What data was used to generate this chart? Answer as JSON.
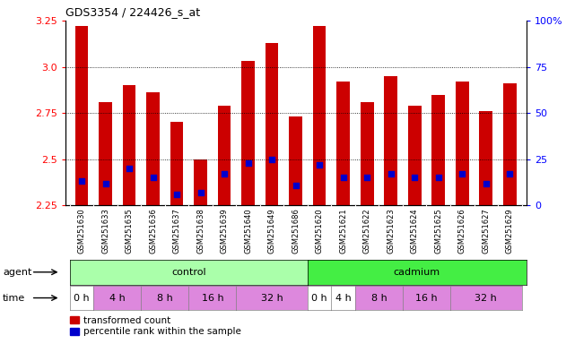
{
  "title": "GDS3354 / 224426_s_at",
  "samples": [
    "GSM251630",
    "GSM251633",
    "GSM251635",
    "GSM251636",
    "GSM251637",
    "GSM251638",
    "GSM251639",
    "GSM251640",
    "GSM251649",
    "GSM251686",
    "GSM251620",
    "GSM251621",
    "GSM251622",
    "GSM251623",
    "GSM251624",
    "GSM251625",
    "GSM251626",
    "GSM251627",
    "GSM251629"
  ],
  "bar_heights": [
    3.22,
    2.81,
    2.9,
    2.86,
    2.7,
    2.5,
    2.79,
    3.03,
    3.13,
    2.73,
    3.22,
    2.92,
    2.81,
    2.95,
    2.79,
    2.85,
    2.92,
    2.76,
    2.91
  ],
  "blue_dot_values": [
    2.38,
    2.37,
    2.45,
    2.4,
    2.31,
    2.32,
    2.42,
    2.48,
    2.5,
    2.36,
    2.47,
    2.4,
    2.4,
    2.42,
    2.4,
    2.4,
    2.42,
    2.37,
    2.42
  ],
  "bar_color": "#cc0000",
  "blue_color": "#0000cc",
  "ymin": 2.25,
  "ymax": 3.25,
  "yticks": [
    2.25,
    2.5,
    2.75,
    3.0,
    3.25
  ],
  "right_yticks": [
    0,
    25,
    50,
    75,
    100
  ],
  "control_color": "#aaffaa",
  "cadmium_color": "#44ee44",
  "time_white_color": "#ffffff",
  "time_pink_color": "#dd88dd",
  "legend_red_label": "transformed count",
  "legend_blue_label": "percentile rank within the sample",
  "bar_width": 0.55,
  "time_groups_control": [
    {
      "label": "0 h",
      "indices": [
        0
      ],
      "color": "#ffffff"
    },
    {
      "label": "4 h",
      "indices": [
        1,
        2
      ],
      "color": "#dd88dd"
    },
    {
      "label": "8 h",
      "indices": [
        3,
        4
      ],
      "color": "#dd88dd"
    },
    {
      "label": "16 h",
      "indices": [
        5,
        6
      ],
      "color": "#dd88dd"
    },
    {
      "label": "32 h",
      "indices": [
        7,
        8,
        9
      ],
      "color": "#dd88dd"
    }
  ],
  "time_groups_cadmium": [
    {
      "label": "0 h",
      "indices": [
        10
      ],
      "color": "#ffffff"
    },
    {
      "label": "4 h",
      "indices": [
        11
      ],
      "color": "#ffffff"
    },
    {
      "label": "8 h",
      "indices": [
        12,
        13
      ],
      "color": "#dd88dd"
    },
    {
      "label": "16 h",
      "indices": [
        14,
        15
      ],
      "color": "#dd88dd"
    },
    {
      "label": "32 h",
      "indices": [
        16,
        17,
        18
      ],
      "color": "#dd88dd"
    }
  ]
}
